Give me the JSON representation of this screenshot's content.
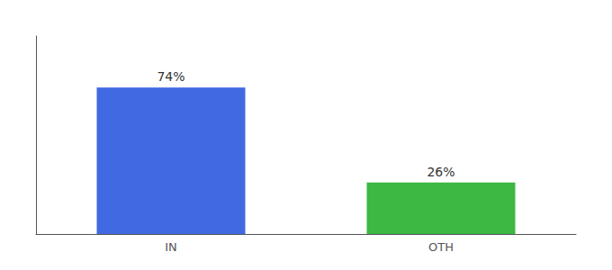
{
  "chart_data": {
    "type": "bar",
    "categories": [
      "IN",
      "OTH"
    ],
    "values": [
      74,
      26
    ],
    "value_labels": [
      "74%",
      "26%"
    ],
    "data_labels": true,
    "colors": [
      "#4169E1",
      "#3CB843"
    ],
    "ylim": [
      0,
      100
    ],
    "grid": false,
    "tick_labels": "x"
  }
}
